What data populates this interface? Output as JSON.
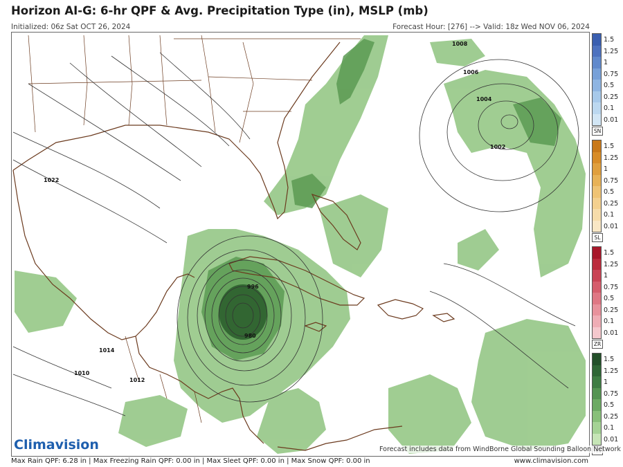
{
  "title": "Horizon AI-G: 6-hr QPF & Avg. Precipitation Type (in), MSLP (mb)",
  "initialized": "Initialized: 06z Sat OCT 26, 2024",
  "valid": "Forecast Hour: [276] --> Valid: 18z Wed NOV 06, 2024",
  "pressure_labels": [
    "1008",
    "1006",
    "1004",
    "1002",
    "1022",
    "996",
    "980",
    "1014",
    "1010",
    "1012"
  ],
  "legend": {
    "ticks": [
      "1.5",
      "1.25",
      "1",
      "0.75",
      "0.5",
      "0.25",
      "0.1",
      "0.01"
    ],
    "types": [
      {
        "code": "SN",
        "colors": [
          "#3a5fb0",
          "#4d72bf",
          "#6089cc",
          "#77a0d8",
          "#8fb5e2",
          "#a7c9ea",
          "#bcd8f0",
          "#d2e6f5"
        ]
      },
      {
        "code": "SL",
        "colors": [
          "#c9791a",
          "#d88c28",
          "#e09f3e",
          "#e8b257",
          "#efc374",
          "#f3d08f",
          "#f6dcaa",
          "#f9e7c5"
        ]
      },
      {
        "code": "ZR",
        "colors": [
          "#a8182b",
          "#bb2c3d",
          "#c94455",
          "#d55d6c",
          "#df7784",
          "#e8929c",
          "#efadb5",
          "#f5c8cd"
        ]
      },
      {
        "code": "RN",
        "colors": [
          "#23502a",
          "#2f6636",
          "#3e7c43",
          "#549452",
          "#6caa63",
          "#88c079",
          "#a5d395",
          "#c6e5b6"
        ]
      }
    ]
  },
  "logo_text": "Climavision",
  "credit": "Forecast includes data from WindBorne Global Sounding Balloon Network",
  "footer": "Max Rain QPF: 6.28 in | Max Freezing Rain QPF: 0.00 in | Max Sleet QPF: 0.00 in | Max Snow QPF: 0.00 in",
  "site": "www.climavision.com"
}
